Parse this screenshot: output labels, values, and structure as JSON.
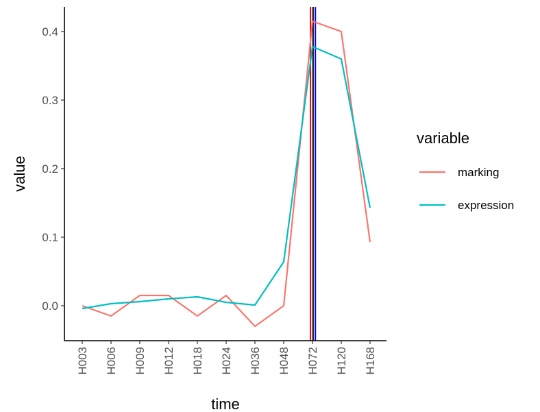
{
  "chart_data": {
    "type": "line",
    "xlabel": "time",
    "ylabel": "value",
    "categories": [
      "H003",
      "H006",
      "H009",
      "H012",
      "H018",
      "H024",
      "H036",
      "H048",
      "H072",
      "H120",
      "H168"
    ],
    "ylim": [
      -0.05,
      0.435
    ],
    "yticks": [
      "0.0",
      "0.1",
      "0.2",
      "0.3",
      "0.4"
    ],
    "grid": false,
    "series": [
      {
        "name": "marking",
        "color": "#F8766D",
        "values": [
          0.0,
          -0.015,
          0.015,
          0.015,
          -0.015,
          0.015,
          -0.03,
          0.0,
          0.415,
          0.4,
          0.093
        ]
      },
      {
        "name": "expression",
        "color": "#00BFC4",
        "values": [
          -0.004,
          0.003,
          0.006,
          0.01,
          0.013,
          0.005,
          0.001,
          0.064,
          0.378,
          0.36,
          0.143
        ]
      }
    ],
    "vlines": [
      {
        "x": 7.93,
        "color": "#FF0000"
      },
      {
        "x": 8.02,
        "color": "#000000"
      },
      {
        "x": 8.1,
        "color": "#0000FF"
      }
    ],
    "legend": {
      "title": "variable",
      "position": "right"
    }
  }
}
